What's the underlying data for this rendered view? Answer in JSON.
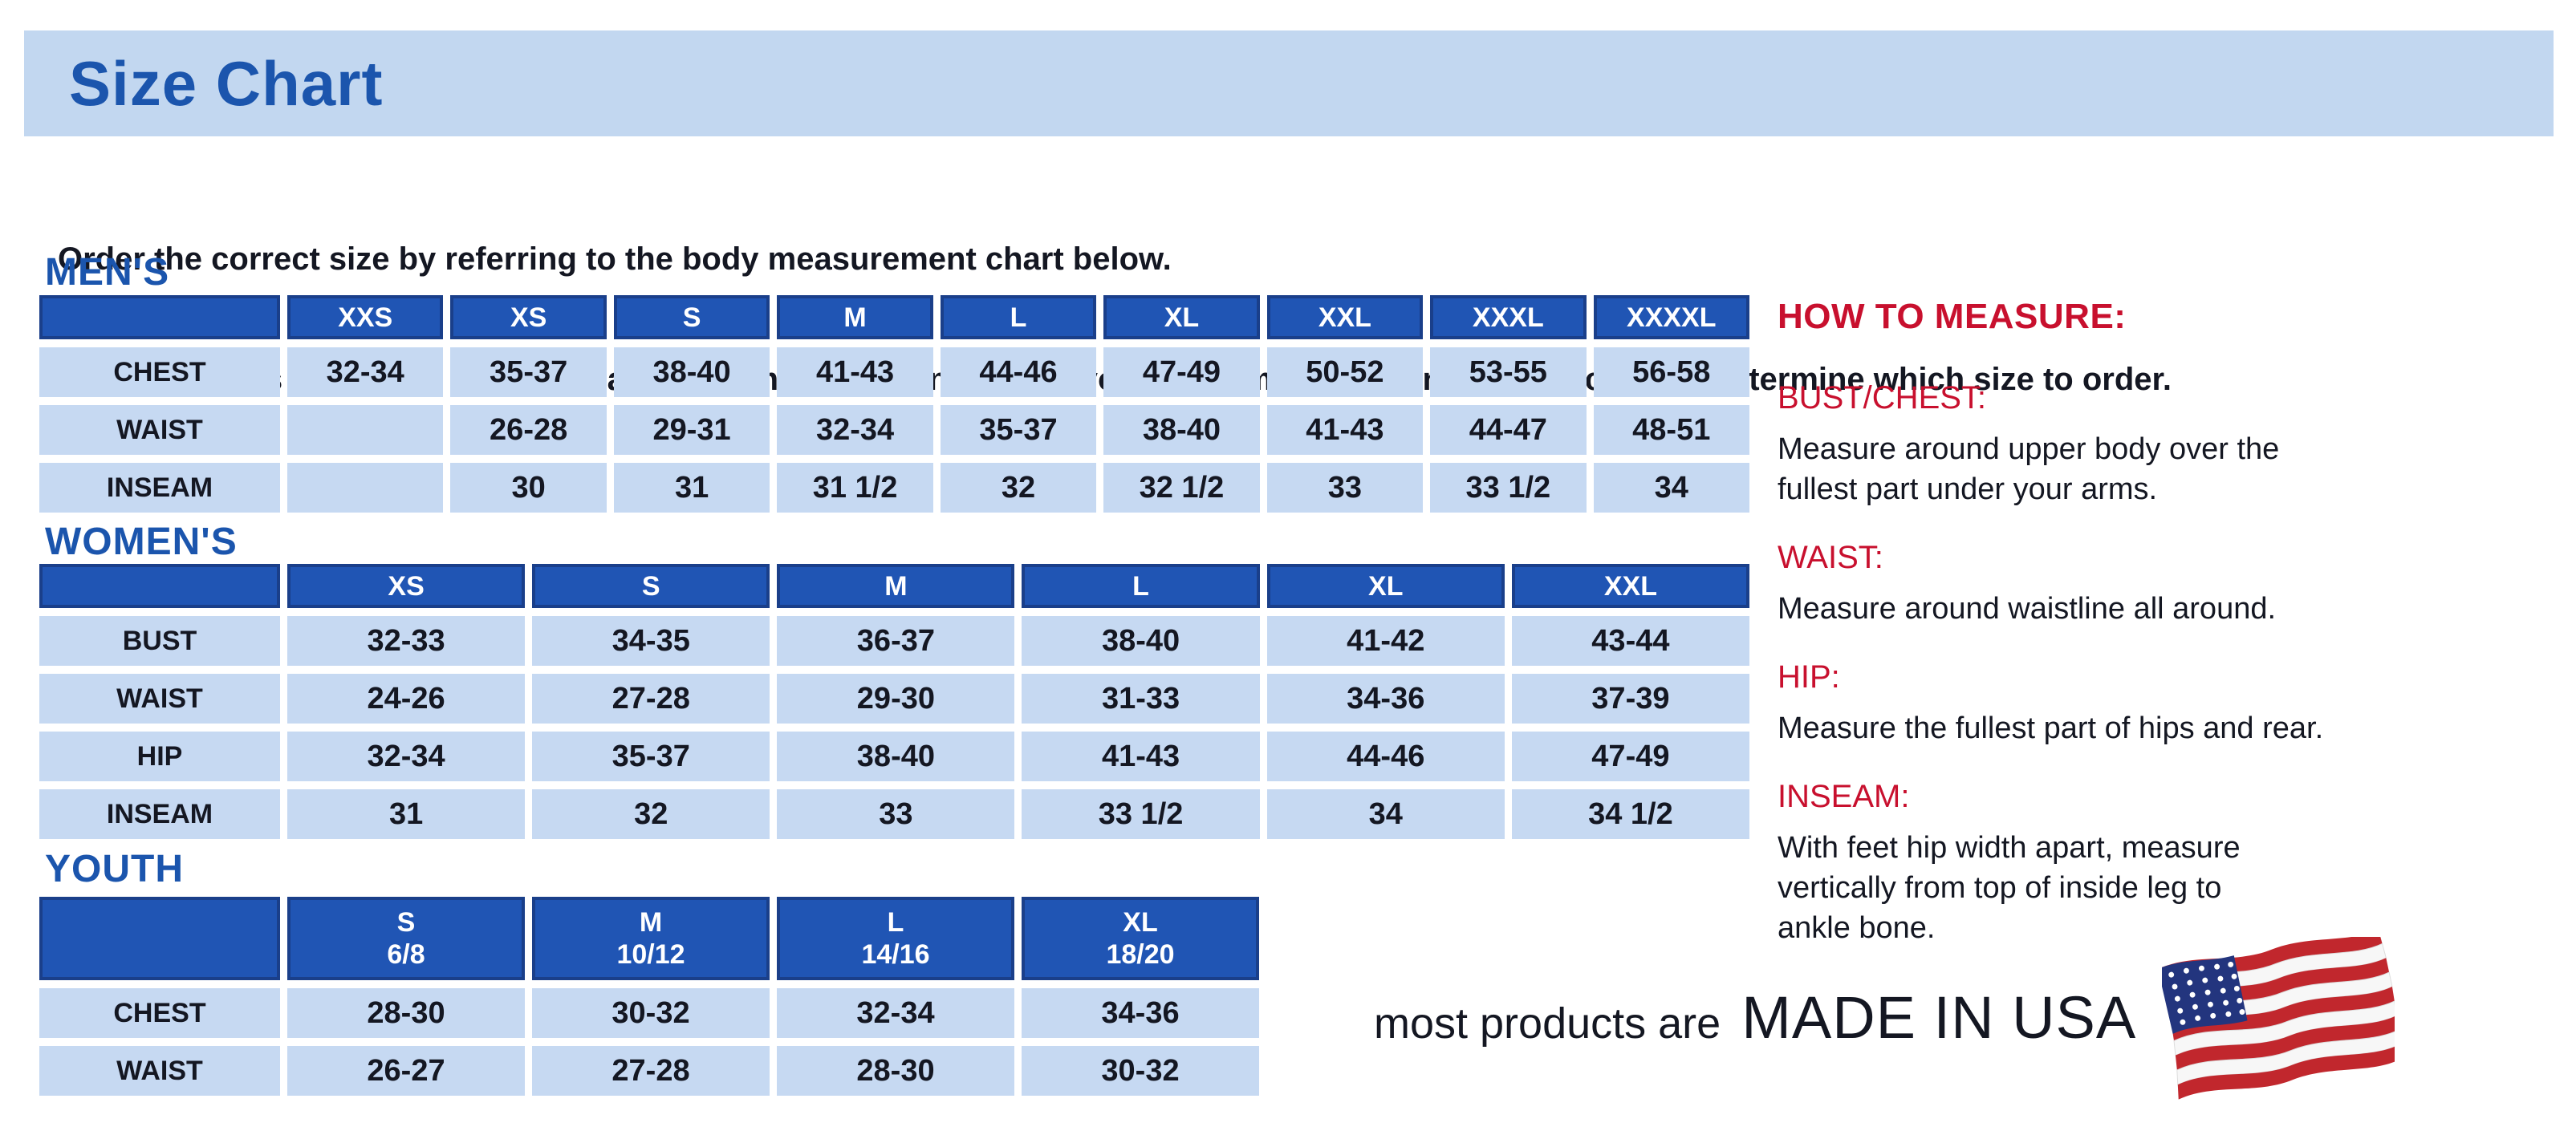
{
  "header": {
    "title": "Size Chart"
  },
  "intro": {
    "line1": "Order the correct size by referring to the body measurement chart below.",
    "line2": "Measurements shown on size chart are body measurements.  Find your body measurements on the chart to determine which size to order."
  },
  "tables": {
    "mens": {
      "title": "MEN'S",
      "columns": [
        "XXS",
        "XS",
        "S",
        "M",
        "L",
        "XL",
        "XXL",
        "XXXL",
        "XXXXL"
      ],
      "rows": [
        {
          "label": "CHEST",
          "values": [
            "32-34",
            "35-37",
            "38-40",
            "41-43",
            "44-46",
            "47-49",
            "50-52",
            "53-55",
            "56-58"
          ]
        },
        {
          "label": "WAIST",
          "values": [
            "",
            "26-28",
            "29-31",
            "32-34",
            "35-37",
            "38-40",
            "41-43",
            "44-47",
            "48-51"
          ]
        },
        {
          "label": "INSEAM",
          "values": [
            "",
            "30",
            "31",
            "31 1/2",
            "32",
            "32 1/2",
            "33",
            "33 1/2",
            "34"
          ]
        }
      ]
    },
    "womens": {
      "title": "WOMEN'S",
      "columns": [
        "XS",
        "S",
        "M",
        "L",
        "XL",
        "XXL"
      ],
      "rows": [
        {
          "label": "BUST",
          "values": [
            "32-33",
            "34-35",
            "36-37",
            "38-40",
            "41-42",
            "43-44"
          ]
        },
        {
          "label": "WAIST",
          "values": [
            "24-26",
            "27-28",
            "29-30",
            "31-33",
            "34-36",
            "37-39"
          ]
        },
        {
          "label": "HIP",
          "values": [
            "32-34",
            "35-37",
            "38-40",
            "41-43",
            "44-46",
            "47-49"
          ]
        },
        {
          "label": "INSEAM",
          "values": [
            "31",
            "32",
            "33",
            "33 1/2",
            "34",
            "34 1/2"
          ]
        }
      ]
    },
    "youth": {
      "title": "YOUTH",
      "columns": [
        [
          "S",
          "6/8"
        ],
        [
          "M",
          "10/12"
        ],
        [
          "L",
          "14/16"
        ],
        [
          "XL",
          "18/20"
        ]
      ],
      "rows": [
        {
          "label": "CHEST",
          "values": [
            "28-30",
            "30-32",
            "32-34",
            "34-36"
          ]
        },
        {
          "label": "WAIST",
          "values": [
            "26-27",
            "27-28",
            "28-30",
            "30-32"
          ]
        }
      ]
    }
  },
  "how_to_measure": {
    "title": "HOW TO MEASURE:",
    "items": [
      {
        "heading": "BUST/CHEST:",
        "text": "Measure around upper body over the\nfullest part under your arms."
      },
      {
        "heading": "WAIST:",
        "text": "Measure around waistline all around."
      },
      {
        "heading": "HIP:",
        "text": "Measure the fullest part of hips and rear."
      },
      {
        "heading": "INSEAM:",
        "text": "With feet hip width apart, measure\nvertically from top of inside leg to\nankle bone."
      }
    ]
  },
  "footer": {
    "prefix": "most products are",
    "made_in": "MADE IN USA",
    "flag_icon": "us-flag-icon"
  },
  "colors": {
    "banner_blue": "#c2d7f0",
    "title_blue": "#1b55ad",
    "header_blue": "#2055b4",
    "header_border": "#1a3f8a",
    "cell_blue": "#c6d9f2",
    "red": "#c8102e",
    "text": "#141722"
  }
}
